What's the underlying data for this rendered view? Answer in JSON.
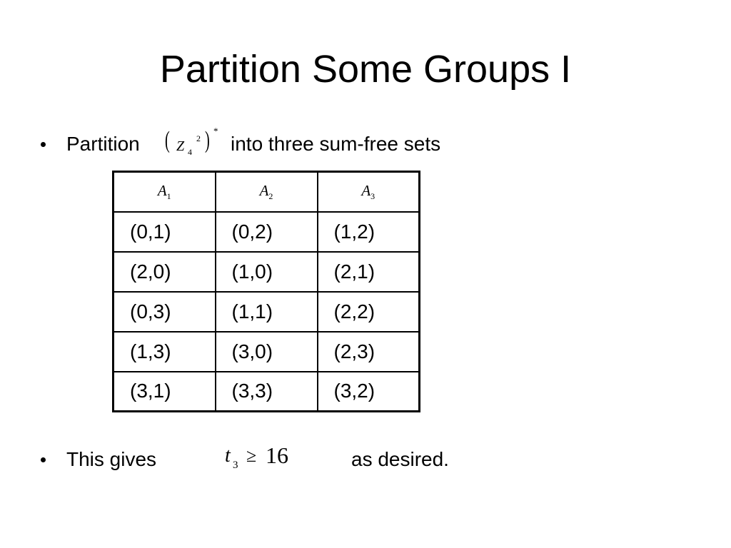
{
  "title": "Partition Some Groups I",
  "bullets": [
    {
      "text_before": "Partition",
      "math": {
        "open": "(",
        "base": "Z",
        "sub": "4",
        "sup": "2",
        "close": ")",
        "star": "*"
      },
      "text_after": "into three sum-free sets"
    },
    {
      "text_before": "This gives",
      "math": {
        "base": "t",
        "sub": "3",
        "relation": "≥",
        "bound": "16"
      },
      "text_after": "as desired."
    }
  ],
  "table": {
    "header": [
      {
        "letter": "A",
        "sub": "1"
      },
      {
        "letter": "A",
        "sub": "2"
      },
      {
        "letter": "A",
        "sub": "3"
      }
    ],
    "rows": [
      [
        "(0,1)",
        "(0,2)",
        "(1,2)"
      ],
      [
        "(2,0)",
        "(1,0)",
        "(2,1)"
      ],
      [
        "(0,3)",
        "(1,1)",
        "(2,2)"
      ],
      [
        "(1,3)",
        "(3,0)",
        "(2,3)"
      ],
      [
        "(3,1)",
        "(3,3)",
        "(3,2)"
      ]
    ]
  }
}
